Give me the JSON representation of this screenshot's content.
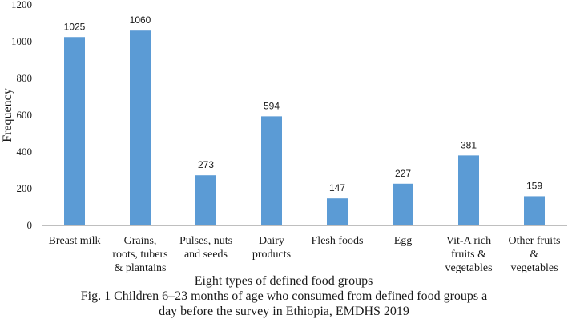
{
  "chart_data": {
    "type": "bar",
    "categories": [
      [
        "Breast milk"
      ],
      [
        "Grains,",
        "roots, tubers",
        "& plantains"
      ],
      [
        "Pulses, nuts",
        "and seeds"
      ],
      [
        "Dairy",
        "products"
      ],
      [
        "Flesh foods"
      ],
      [
        "Egg"
      ],
      [
        "Vit-A rich",
        "fruits &",
        "vegetables"
      ],
      [
        "Other fruits",
        "&",
        "vegetables"
      ]
    ],
    "values": [
      1025,
      1060,
      273,
      594,
      147,
      227,
      381,
      159
    ],
    "data_labels": [
      "1025",
      "1060",
      "273",
      "594",
      "147",
      "227",
      "381",
      "159"
    ],
    "yticks": [
      0,
      200,
      400,
      600,
      800,
      1000,
      1200
    ],
    "ytick_labels": [
      "0",
      "200",
      "400",
      "600",
      "800",
      "1000",
      "1200"
    ],
    "ylim": [
      0,
      1200
    ],
    "ylabel": "Frequency",
    "xlabel": "Eight types of defined food groups",
    "bar_color": "#5b9bd5",
    "grid": false
  },
  "caption": {
    "line1": "Fig. 1 Children 6–23 months of age who consumed from defined food groups a",
    "line2": "day before the survey in Ethiopia, EMDHS 2019"
  }
}
